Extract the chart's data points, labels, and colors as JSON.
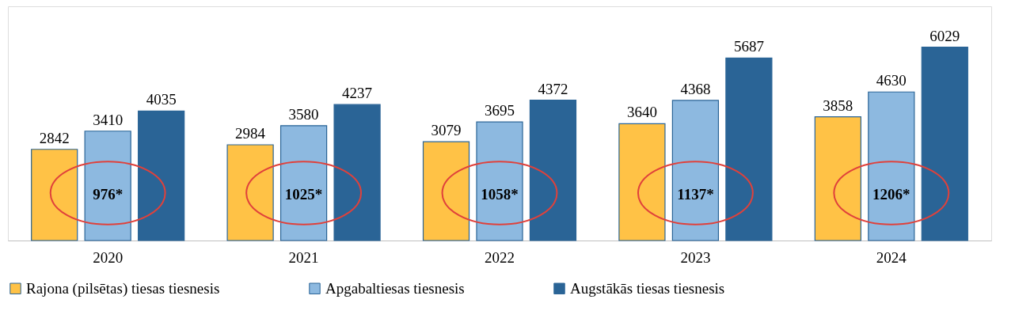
{
  "chart_data": {
    "type": "bar",
    "categories": [
      "2020",
      "2021",
      "2022",
      "2023",
      "2024"
    ],
    "series": [
      {
        "name": "Rajona (pilsētas) tiesas tiesnesis",
        "color": "#ffc246",
        "values": [
          2842,
          2984,
          3079,
          3640,
          3858
        ]
      },
      {
        "name": "Apgabaltiesas tiesnesis",
        "color": "#8db9e0",
        "values": [
          3410,
          3580,
          3695,
          4368,
          4630
        ]
      },
      {
        "name": "Augstākās tiesas tiesnesis",
        "color": "#2a6496",
        "values": [
          4035,
          4237,
          4372,
          5687,
          6029
        ]
      }
    ],
    "ylim": [
      0,
      7300
    ],
    "tick_labels": "x",
    "grid": false,
    "legend": "bottom",
    "data_labels": true,
    "annotations": [
      "976*",
      "1025*",
      "1058*",
      "1137*",
      "1206*"
    ]
  }
}
